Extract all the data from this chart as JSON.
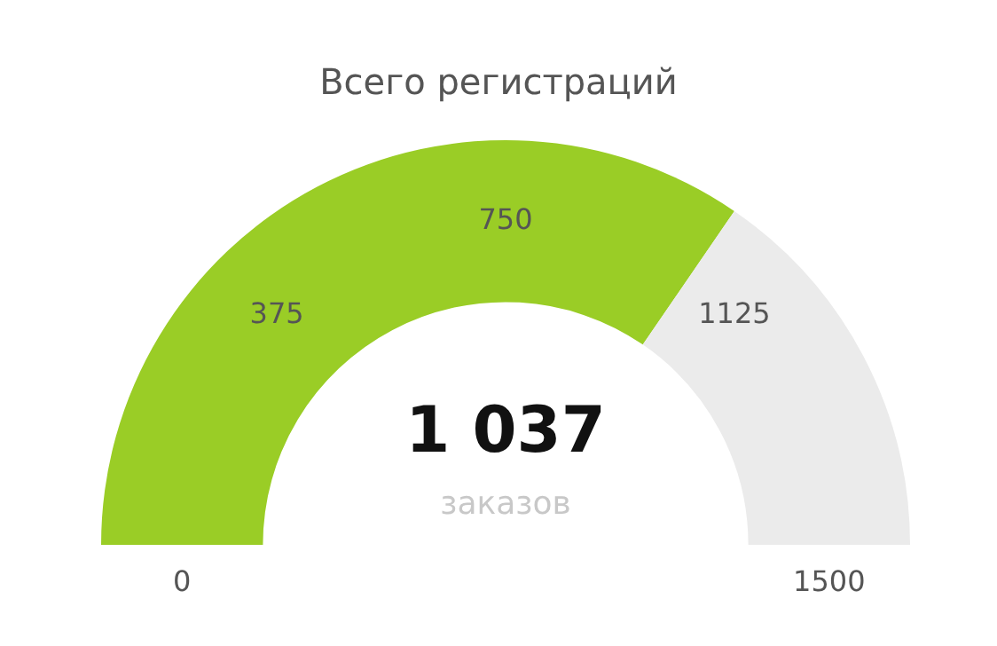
{
  "chart_data": {
    "type": "donut",
    "title": "Всего регистраций",
    "categories": [
      null,
      null
    ],
    "values": [
      1037,
      463
    ],
    "colors": [
      "#9acd26",
      "#ebebeb"
    ],
    "value_labels": [
      "1 037",
      null
    ],
    "annotations": [
      "заказов",
      "0",
      "375",
      "750",
      "1125",
      "1500"
    ]
  }
}
